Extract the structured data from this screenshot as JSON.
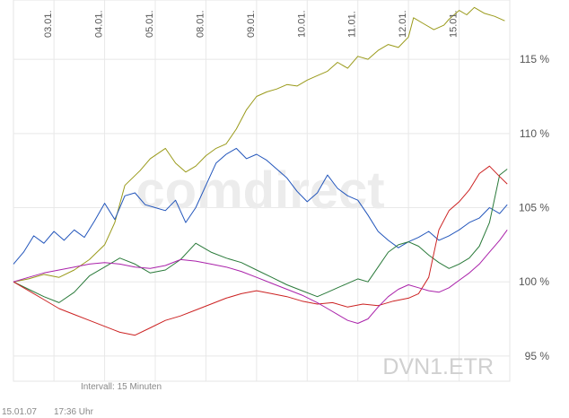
{
  "chart_data": {
    "type": "line",
    "title": "",
    "xlabel": "",
    "ylabel": "",
    "x_ticks": [
      "03.01.",
      "04.01.",
      "05.01.",
      "08.01.",
      "09.01.",
      "10.01.",
      "11.01.",
      "12.01.",
      "15.01."
    ],
    "x_tick_positions": [
      0.8,
      1.8,
      2.8,
      3.8,
      4.8,
      5.8,
      6.8,
      7.8,
      8.8
    ],
    "xlim": [
      0,
      9.8
    ],
    "y_ticks": [
      {
        "value": 95,
        "label": "95 %"
      },
      {
        "value": 100,
        "label": "100 %"
      },
      {
        "value": 105,
        "label": "105 %"
      },
      {
        "value": 110,
        "label": "110 %"
      },
      {
        "value": 115,
        "label": "115 %"
      }
    ],
    "ylim": [
      93.3,
      119
    ],
    "grid": true,
    "watermark": "comdirect",
    "instrument_label": "DVN1.ETR",
    "interval_label": "Intervall: 15 Minuten",
    "series": [
      {
        "name": "olive",
        "color": "#9a9a1a",
        "x": [
          0,
          0.3,
          0.6,
          0.9,
          1.2,
          1.5,
          1.8,
          2.0,
          2.2,
          2.5,
          2.7,
          3.0,
          3.2,
          3.4,
          3.6,
          3.8,
          4.0,
          4.2,
          4.4,
          4.6,
          4.8,
          5.0,
          5.2,
          5.4,
          5.6,
          5.8,
          6.0,
          6.2,
          6.4,
          6.6,
          6.8,
          7.0,
          7.2,
          7.4,
          7.6,
          7.8,
          7.9,
          8.1,
          8.3,
          8.5,
          8.6,
          8.8,
          8.95,
          9.1,
          9.3,
          9.5,
          9.7
        ],
        "values": [
          100.0,
          100.2,
          100.5,
          100.3,
          100.8,
          101.5,
          102.5,
          104.0,
          106.5,
          107.5,
          108.3,
          109.0,
          108.0,
          107.4,
          107.8,
          108.5,
          109.0,
          109.3,
          110.3,
          111.6,
          112.5,
          112.8,
          113.0,
          113.3,
          113.2,
          113.6,
          113.9,
          114.2,
          114.8,
          114.4,
          115.2,
          115.0,
          115.6,
          116.0,
          115.8,
          116.5,
          117.8,
          117.4,
          117.0,
          117.3,
          117.7,
          118.3,
          118.0,
          118.5,
          118.1,
          117.9,
          117.6
        ]
      },
      {
        "name": "blue",
        "color": "#2255bb",
        "x": [
          0,
          0.2,
          0.4,
          0.6,
          0.8,
          1.0,
          1.2,
          1.4,
          1.6,
          1.8,
          2.0,
          2.2,
          2.4,
          2.6,
          2.8,
          3.0,
          3.2,
          3.4,
          3.6,
          3.8,
          4.0,
          4.2,
          4.4,
          4.6,
          4.8,
          5.0,
          5.2,
          5.4,
          5.6,
          5.8,
          6.0,
          6.2,
          6.4,
          6.6,
          6.8,
          7.0,
          7.2,
          7.4,
          7.6,
          7.8,
          8.0,
          8.2,
          8.4,
          8.6,
          8.8,
          9.0,
          9.2,
          9.4,
          9.6,
          9.75
        ],
        "values": [
          101.2,
          102.0,
          103.1,
          102.6,
          103.4,
          102.8,
          103.5,
          103.0,
          104.1,
          105.3,
          104.2,
          105.8,
          106.0,
          105.2,
          105.0,
          104.8,
          105.5,
          104.0,
          105.0,
          106.5,
          108.0,
          108.6,
          109.0,
          108.3,
          108.6,
          108.2,
          107.6,
          107.0,
          106.1,
          105.4,
          106.0,
          107.2,
          106.3,
          105.8,
          105.5,
          104.5,
          103.4,
          102.8,
          102.3,
          102.7,
          103.0,
          103.4,
          102.8,
          103.1,
          103.5,
          104.0,
          104.3,
          105.0,
          104.6,
          105.2
        ]
      },
      {
        "name": "green",
        "color": "#2a7a3a",
        "x": [
          0,
          0.3,
          0.6,
          0.9,
          1.2,
          1.5,
          1.8,
          2.1,
          2.4,
          2.7,
          3.0,
          3.3,
          3.6,
          3.9,
          4.2,
          4.5,
          4.8,
          5.1,
          5.4,
          5.7,
          6.0,
          6.2,
          6.4,
          6.6,
          6.8,
          7.0,
          7.2,
          7.4,
          7.6,
          7.8,
          8.0,
          8.2,
          8.4,
          8.6,
          8.8,
          9.0,
          9.2,
          9.4,
          9.6,
          9.75
        ],
        "values": [
          100.0,
          99.5,
          99.0,
          98.6,
          99.3,
          100.4,
          101.0,
          101.6,
          101.2,
          100.6,
          100.8,
          101.5,
          102.6,
          102.0,
          101.6,
          101.3,
          100.8,
          100.3,
          99.8,
          99.4,
          99.0,
          99.3,
          99.6,
          99.9,
          100.2,
          100.0,
          101.0,
          102.0,
          102.5,
          102.7,
          102.4,
          101.8,
          101.3,
          100.9,
          101.2,
          101.6,
          102.4,
          104.0,
          107.2,
          107.6
        ]
      },
      {
        "name": "red",
        "color": "#cc2222",
        "x": [
          0,
          0.3,
          0.6,
          0.9,
          1.2,
          1.5,
          1.8,
          2.1,
          2.4,
          2.7,
          3.0,
          3.3,
          3.6,
          3.9,
          4.2,
          4.5,
          4.8,
          5.1,
          5.4,
          5.7,
          6.0,
          6.3,
          6.6,
          6.9,
          7.2,
          7.5,
          7.8,
          8.0,
          8.2,
          8.4,
          8.6,
          8.8,
          9.0,
          9.2,
          9.4,
          9.6,
          9.75
        ],
        "values": [
          100.0,
          99.4,
          98.8,
          98.2,
          97.8,
          97.4,
          97.0,
          96.6,
          96.4,
          96.9,
          97.4,
          97.7,
          98.1,
          98.5,
          98.9,
          99.2,
          99.4,
          99.2,
          99.0,
          98.7,
          98.5,
          98.6,
          98.3,
          98.5,
          98.4,
          98.7,
          98.9,
          99.2,
          100.3,
          103.5,
          104.8,
          105.4,
          106.2,
          107.3,
          107.8,
          107.1,
          106.6
        ]
      },
      {
        "name": "purple",
        "color": "#aa22aa",
        "x": [
          0,
          0.3,
          0.6,
          0.9,
          1.2,
          1.5,
          1.8,
          2.1,
          2.4,
          2.7,
          3.0,
          3.3,
          3.6,
          3.9,
          4.2,
          4.5,
          4.8,
          5.1,
          5.4,
          5.7,
          6.0,
          6.2,
          6.4,
          6.6,
          6.8,
          7.0,
          7.2,
          7.4,
          7.6,
          7.8,
          8.0,
          8.2,
          8.4,
          8.6,
          8.8,
          9.0,
          9.2,
          9.4,
          9.6,
          9.75
        ],
        "values": [
          100.0,
          100.3,
          100.6,
          100.8,
          101.0,
          101.2,
          101.3,
          101.2,
          101.0,
          100.9,
          101.1,
          101.5,
          101.4,
          101.2,
          101.0,
          100.7,
          100.3,
          99.9,
          99.5,
          99.1,
          98.6,
          98.2,
          97.8,
          97.4,
          97.2,
          97.5,
          98.3,
          99.0,
          99.5,
          99.8,
          99.6,
          99.4,
          99.3,
          99.6,
          100.1,
          100.6,
          101.2,
          102.0,
          102.8,
          103.5
        ]
      }
    ]
  },
  "footer": {
    "date": "15.01.07",
    "time": "17:36 Uhr"
  }
}
